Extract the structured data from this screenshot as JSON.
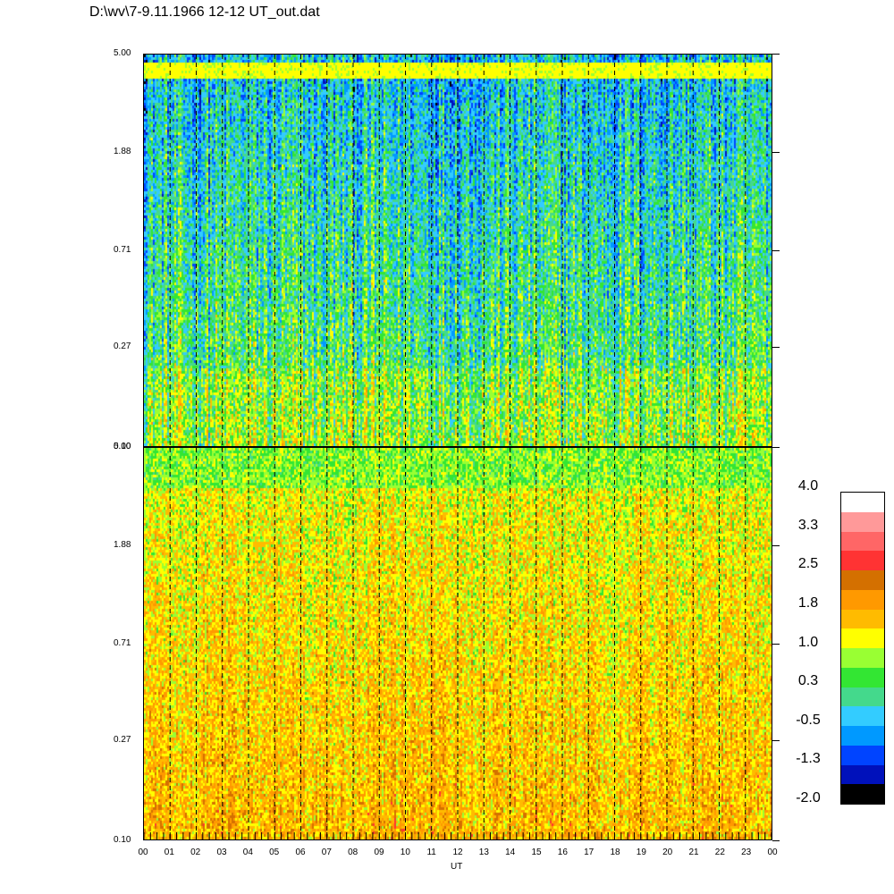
{
  "title": "D:\\wv\\7-9.11.1966  12-12 UT_out.dat",
  "chart_data": [
    {
      "type": "heatmap",
      "panel": "top",
      "y_ticks": [
        "5.00",
        "1.88",
        "0.71",
        "0.27",
        "0.10"
      ],
      "y_scale": "log",
      "ylim": [
        0.1,
        5.0
      ],
      "xlim": [
        0,
        24
      ],
      "x_dashed_lines": [
        1,
        2,
        3,
        4,
        5,
        6,
        7,
        8,
        9,
        10,
        11,
        12,
        13,
        14,
        15,
        16,
        17,
        18,
        19,
        20,
        21,
        22,
        23
      ],
      "dominant_levels": [
        -1.3,
        -0.5,
        0.3,
        1.0
      ]
    },
    {
      "type": "heatmap",
      "panel": "bottom",
      "y_ticks": [
        "5.00",
        "1.88",
        "0.71",
        "0.27",
        "0.10"
      ],
      "y_scale": "log",
      "ylim": [
        0.1,
        5.0
      ],
      "xlim": [
        0,
        24
      ],
      "x_dashed_lines": [
        1,
        2,
        3,
        4,
        5,
        6,
        7,
        8,
        9,
        10,
        11,
        12,
        13,
        14,
        15,
        16,
        17,
        18,
        19,
        20,
        21,
        22,
        23
      ],
      "dominant_levels": [
        1.0,
        1.4,
        1.8,
        2.2
      ]
    }
  ],
  "x_axis": {
    "tick_labels": [
      "00",
      "01",
      "02",
      "03",
      "04",
      "05",
      "06",
      "07",
      "08",
      "09",
      "10",
      "11",
      "12",
      "13",
      "14",
      "15",
      "16",
      "17",
      "18",
      "19",
      "20",
      "21",
      "22",
      "23",
      "00"
    ],
    "label": "UT"
  },
  "colorbar": {
    "labels": [
      "4.0",
      "3.3",
      "2.5",
      "1.8",
      "1.0",
      "0.3",
      "-0.5",
      "-1.3",
      "-2.0"
    ],
    "colors_top_to_bottom": [
      "#ffffff",
      "#ff9999",
      "#ff6666",
      "#ff3333",
      "#d47000",
      "#ff9900",
      "#ffbb00",
      "#ffff00",
      "#99ff33",
      "#33e633",
      "#44d98c",
      "#33ccff",
      "#0099ff",
      "#0044ff",
      "#0011bb",
      "#000000"
    ]
  }
}
